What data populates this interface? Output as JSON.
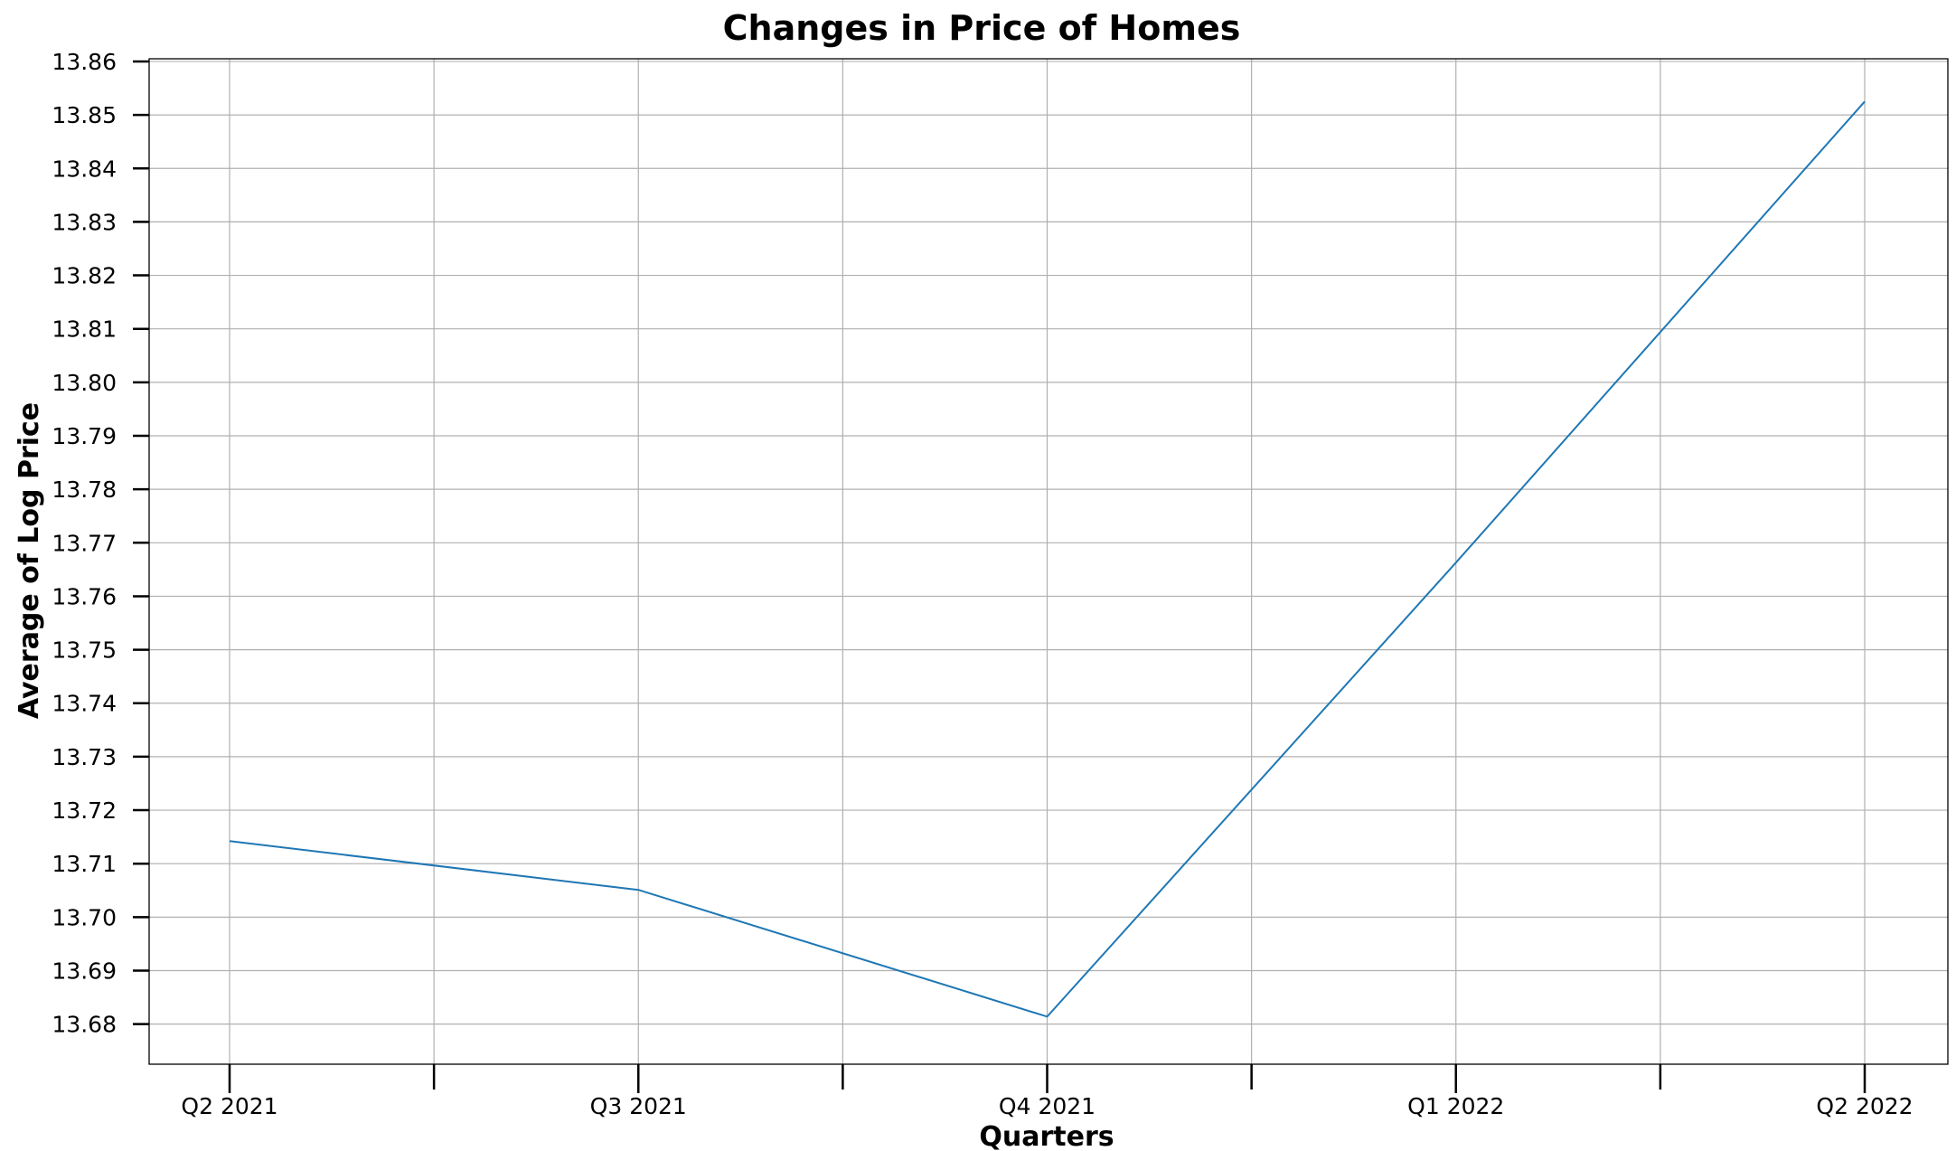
{
  "chart_data": {
    "type": "line",
    "title": "Changes in Price of Homes",
    "xlabel": "Quarters",
    "ylabel": "Average of Log Price",
    "categories": [
      "Q2 2021",
      "Q3 2021",
      "Q4 2021",
      "Q1 2022",
      "Q2 2022"
    ],
    "series": [
      {
        "values": [
          13.7142,
          13.7051,
          13.6814,
          13.7663,
          13.8525
        ],
        "color": "#1f77b4"
      }
    ],
    "ylim": [
      13.6725,
      13.8605
    ],
    "yticks": [
      "13.68",
      "13.69",
      "13.70",
      "13.71",
      "13.72",
      "13.73",
      "13.74",
      "13.75",
      "13.76",
      "13.77",
      "13.78",
      "13.79",
      "13.80",
      "13.81",
      "13.82",
      "13.83",
      "13.84",
      "13.85",
      "13.86"
    ],
    "grid": true,
    "legend": "none"
  }
}
